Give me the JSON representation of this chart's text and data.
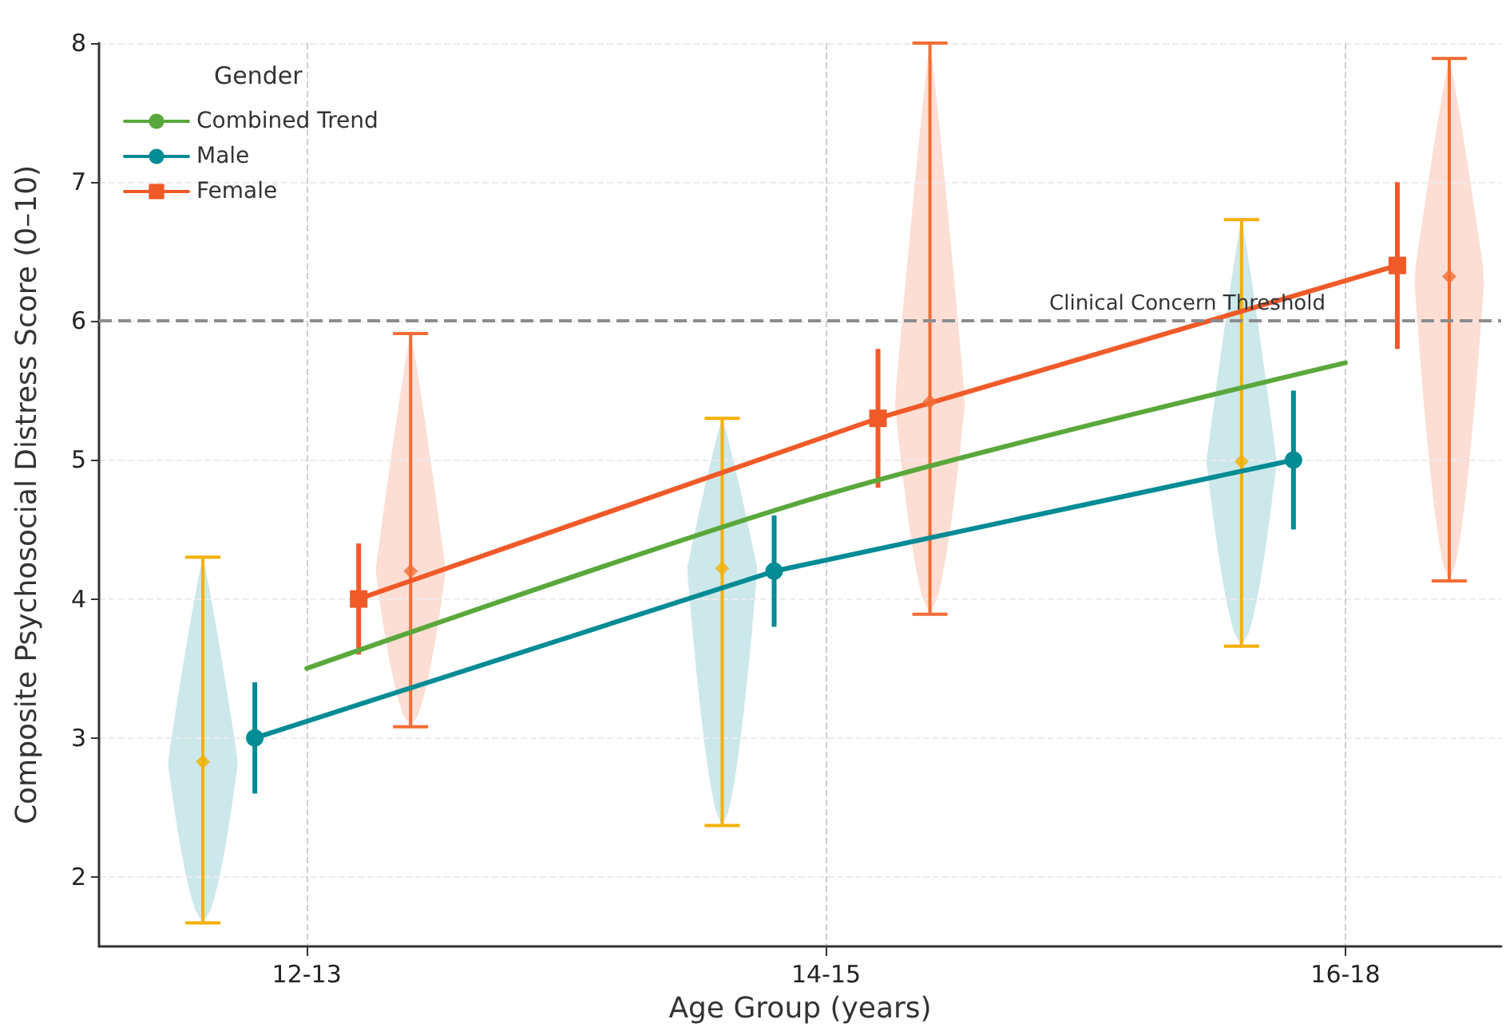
{
  "chart_data": {
    "type": "line",
    "xlabel": "Age Group (years)",
    "ylabel": "Composite Psychosocial Distress Score (0–10)",
    "categories": [
      null,
      null,
      null,
      null,
      "12-13",
      null,
      null,
      null,
      null,
      null,
      null,
      null,
      null,
      null,
      "14-15",
      null,
      null,
      null,
      null,
      null,
      null,
      null,
      null,
      null,
      "16-18",
      null,
      null,
      null
    ],
    "ylim": [
      1.5,
      8
    ],
    "yticks": [
      2,
      3,
      4,
      5,
      6,
      7,
      8
    ],
    "grid": true,
    "legend": "top left",
    "legend_title": "Gender",
    "ref_lines": [
      {
        "axis": "y",
        "value": 6,
        "label": "Clinical Concern Threshold",
        "color": "#8c8c8c",
        "line_style": "dashed"
      }
    ],
    "series": [
      {
        "name": "Combined Trend",
        "color": "#5aa83c",
        "values": [
          null,
          null,
          null,
          null,
          3.5,
          null,
          null,
          null,
          null,
          null,
          null,
          null,
          null,
          null,
          4.75,
          null,
          null,
          null,
          null,
          null,
          null,
          null,
          null,
          null,
          5.7,
          null,
          null,
          null
        ],
        "marker": "none"
      },
      {
        "name": "Male",
        "color": "#008b95",
        "values": [
          null,
          null,
          null,
          3.0,
          null,
          null,
          null,
          null,
          null,
          null,
          null,
          null,
          null,
          4.2,
          null,
          null,
          null,
          null,
          null,
          null,
          null,
          null,
          null,
          5.0,
          null,
          null,
          null,
          null
        ],
        "errors": [
          null,
          null,
          null,
          0.4,
          null,
          null,
          null,
          null,
          null,
          null,
          null,
          null,
          null,
          0.4,
          null,
          null,
          null,
          null,
          null,
          null,
          null,
          null,
          null,
          0.5,
          null,
          null,
          null,
          null
        ],
        "marker": "circle"
      },
      {
        "name": "Female",
        "color": "#f05a28",
        "values": [
          null,
          null,
          null,
          null,
          null,
          4.0,
          null,
          null,
          null,
          null,
          null,
          null,
          null,
          null,
          null,
          5.3,
          null,
          null,
          null,
          null,
          null,
          null,
          null,
          null,
          null,
          6.4,
          null,
          null
        ],
        "errors": [
          null,
          null,
          null,
          null,
          null,
          0.4,
          null,
          null,
          null,
          null,
          null,
          null,
          null,
          null,
          null,
          0.5,
          null,
          null,
          null,
          null,
          null,
          null,
          null,
          null,
          null,
          0.6,
          null,
          null
        ],
        "marker": "square"
      },
      {
        "type": "scatter",
        "color": "#f5b000",
        "marker": "diamond",
        "values": [
          null,
          null,
          2.83,
          null,
          null,
          null,
          null,
          null,
          null,
          null,
          null,
          null,
          4.22,
          null,
          null,
          null,
          null,
          null,
          null,
          null,
          null,
          null,
          4.99,
          null,
          null,
          null,
          null,
          null
        ],
        "errors": [
          null,
          null,
          [
            1.67,
            4.3
          ],
          null,
          null,
          null,
          null,
          null,
          null,
          null,
          null,
          null,
          [
            2.37,
            5.3
          ],
          null,
          null,
          null,
          null,
          null,
          null,
          null,
          null,
          null,
          [
            3.66,
            6.73
          ],
          null,
          null,
          null,
          null,
          null
        ]
      },
      {
        "type": "scatter",
        "color": "#f26d35",
        "marker": "diamond",
        "values": [
          null,
          null,
          null,
          null,
          null,
          null,
          4.2,
          null,
          null,
          null,
          null,
          null,
          null,
          null,
          null,
          null,
          5.42,
          null,
          null,
          null,
          null,
          null,
          null,
          null,
          null,
          null,
          6.32,
          null
        ],
        "errors": [
          null,
          null,
          null,
          null,
          null,
          null,
          [
            3.08,
            5.91
          ],
          null,
          null,
          null,
          null,
          null,
          null,
          null,
          null,
          null,
          [
            3.89,
            8.0
          ],
          null,
          null,
          null,
          null,
          null,
          null,
          null,
          null,
          null,
          [
            4.13,
            7.89
          ],
          null
        ]
      }
    ]
  }
}
